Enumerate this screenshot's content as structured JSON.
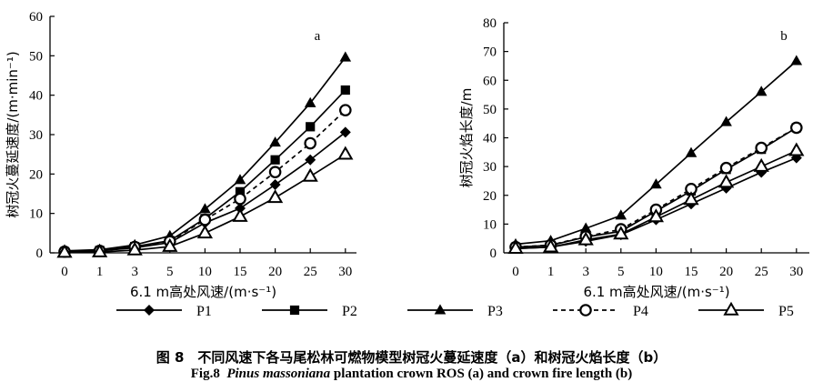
{
  "caption": {
    "zh": "图 8　不同风速下各马尾松林可燃物模型树冠火蔓延速度（a）和树冠火焰长度（b）",
    "en_prefix": "Fig.8",
    "en_species": "Pinus massoniana",
    "en_rest": "plantation crown ROS (a) and crown fire length (b)"
  },
  "chart_data": [
    {
      "type": "line",
      "panel_label": "a",
      "xlabel": "6.1 m高处风速/(m·s⁻¹)",
      "ylabel": "树冠火蔓延速度/(m·min⁻¹)",
      "categories": [
        "0",
        "1",
        "3",
        "5",
        "10",
        "15",
        "20",
        "25",
        "30"
      ],
      "ylim": [
        0,
        60
      ],
      "yticks": [
        0,
        10,
        20,
        30,
        40,
        50,
        60
      ],
      "series": [
        {
          "name": "P1",
          "marker": "diamond",
          "dash": false,
          "values": [
            0.2,
            0.5,
            1.3,
            2.6,
            7.6,
            11.3,
            17.3,
            23.6,
            30.6
          ]
        },
        {
          "name": "P2",
          "marker": "square",
          "dash": false,
          "values": [
            0.3,
            0.6,
            1.6,
            3.1,
            8.7,
            15.5,
            23.6,
            32.0,
            41.3
          ]
        },
        {
          "name": "P3",
          "marker": "triangle",
          "dash": false,
          "values": [
            0.5,
            0.8,
            2.0,
            4.3,
            11.1,
            18.5,
            28.0,
            38.0,
            49.6
          ]
        },
        {
          "name": "P4",
          "marker": "circle-open",
          "dash": true,
          "values": [
            0.3,
            0.5,
            1.5,
            2.9,
            8.4,
            13.7,
            20.5,
            27.8,
            36.2
          ]
        },
        {
          "name": "P5",
          "marker": "triangle-open",
          "dash": false,
          "values": [
            0.1,
            0.2,
            0.7,
            1.6,
            5.0,
            9.2,
            14.0,
            19.4,
            25.0
          ]
        }
      ]
    },
    {
      "type": "line",
      "panel_label": "b",
      "xlabel": "6.1 m高处风速/(m·s⁻¹)",
      "ylabel": "树冠火焰长度/m",
      "categories": [
        "0",
        "1",
        "3",
        "5",
        "10",
        "15",
        "20",
        "25",
        "30"
      ],
      "ylim": [
        0,
        80
      ],
      "yticks": [
        0,
        10,
        20,
        30,
        40,
        50,
        60,
        70,
        80
      ],
      "series": [
        {
          "name": "P1",
          "marker": "diamond",
          "dash": false,
          "values": [
            1.5,
            2.0,
            4.0,
            6.3,
            11.5,
            17.0,
            22.5,
            28.0,
            33.0
          ]
        },
        {
          "name": "P2",
          "marker": "square",
          "dash": false,
          "values": [
            2.0,
            2.6,
            5.5,
            7.5,
            14.5,
            21.5,
            29.0,
            36.0,
            43.5
          ]
        },
        {
          "name": "P3",
          "marker": "triangle",
          "dash": false,
          "values": [
            3.0,
            4.2,
            8.5,
            13.0,
            23.8,
            34.7,
            45.5,
            56.0,
            66.7
          ]
        },
        {
          "name": "P4",
          "marker": "circle-open",
          "dash": true,
          "values": [
            2.0,
            2.7,
            5.7,
            8.2,
            15.0,
            22.2,
            29.5,
            36.5,
            43.5
          ]
        },
        {
          "name": "P5",
          "marker": "triangle-open",
          "dash": false,
          "values": [
            1.5,
            2.0,
            4.5,
            6.5,
            12.5,
            18.5,
            24.5,
            30.0,
            35.5
          ]
        }
      ]
    }
  ],
  "legend": [
    {
      "name": "P1",
      "marker": "diamond",
      "dash": false
    },
    {
      "name": "P2",
      "marker": "square",
      "dash": false
    },
    {
      "name": "P3",
      "marker": "triangle",
      "dash": false
    },
    {
      "name": "P4",
      "marker": "circle-open",
      "dash": true
    },
    {
      "name": "P5",
      "marker": "triangle-open",
      "dash": false
    }
  ]
}
